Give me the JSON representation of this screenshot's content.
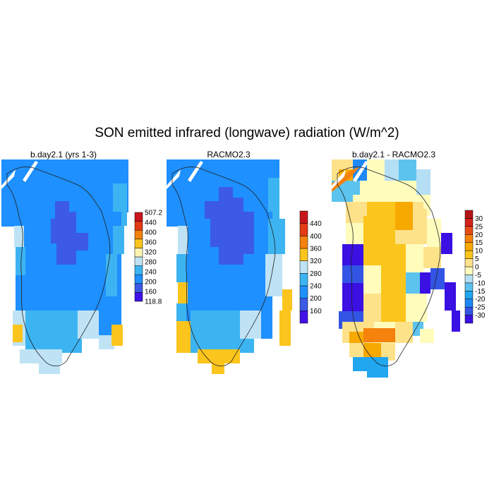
{
  "title": "SON emitted infrared (longwave) radiation (W/m^2)",
  "chart_data": [
    {
      "type": "heatmap",
      "title": "b.day2.1 (yrs 1-3)",
      "colorbar": {
        "labels": [
          "118.8",
          "160",
          "200",
          "240",
          "280",
          "320",
          "360",
          "400",
          "440",
          "507.2"
        ],
        "colors": [
          "#4211e8",
          "#3c5ae6",
          "#1e90ff",
          "#3db4f2",
          "#bfe3f5",
          "#fdf2b0",
          "#fbc51d",
          "#f4820c",
          "#e33b14",
          "#c8161b"
        ]
      }
    },
    {
      "type": "heatmap",
      "title": "RACMO2.3",
      "colorbar": {
        "labels": [
          "160",
          "200",
          "240",
          "280",
          "320",
          "360",
          "400",
          "440"
        ],
        "colors": [
          "#4211e8",
          "#3c5ae6",
          "#1e90ff",
          "#3db4f2",
          "#bfe3f5",
          "#fbc51d",
          "#f4820c",
          "#e33b14",
          "#c8161b"
        ]
      }
    },
    {
      "type": "heatmap",
      "title": "b.day2.1 - RACMO2.3",
      "colorbar": {
        "labels": [
          "-30",
          "-25",
          "-20",
          "-15",
          "-10",
          "-5",
          "0",
          "5",
          "10",
          "15",
          "20",
          "25",
          "30"
        ],
        "colors": [
          "#3a10e3",
          "#3355e6",
          "#1e88f5",
          "#21a6f0",
          "#5cc3ef",
          "#b4dff4",
          "#fffcbc",
          "#fde28a",
          "#fbc51d",
          "#f8a900",
          "#f4820c",
          "#e84c16",
          "#d4211a",
          "#b41418"
        ]
      }
    }
  ]
}
